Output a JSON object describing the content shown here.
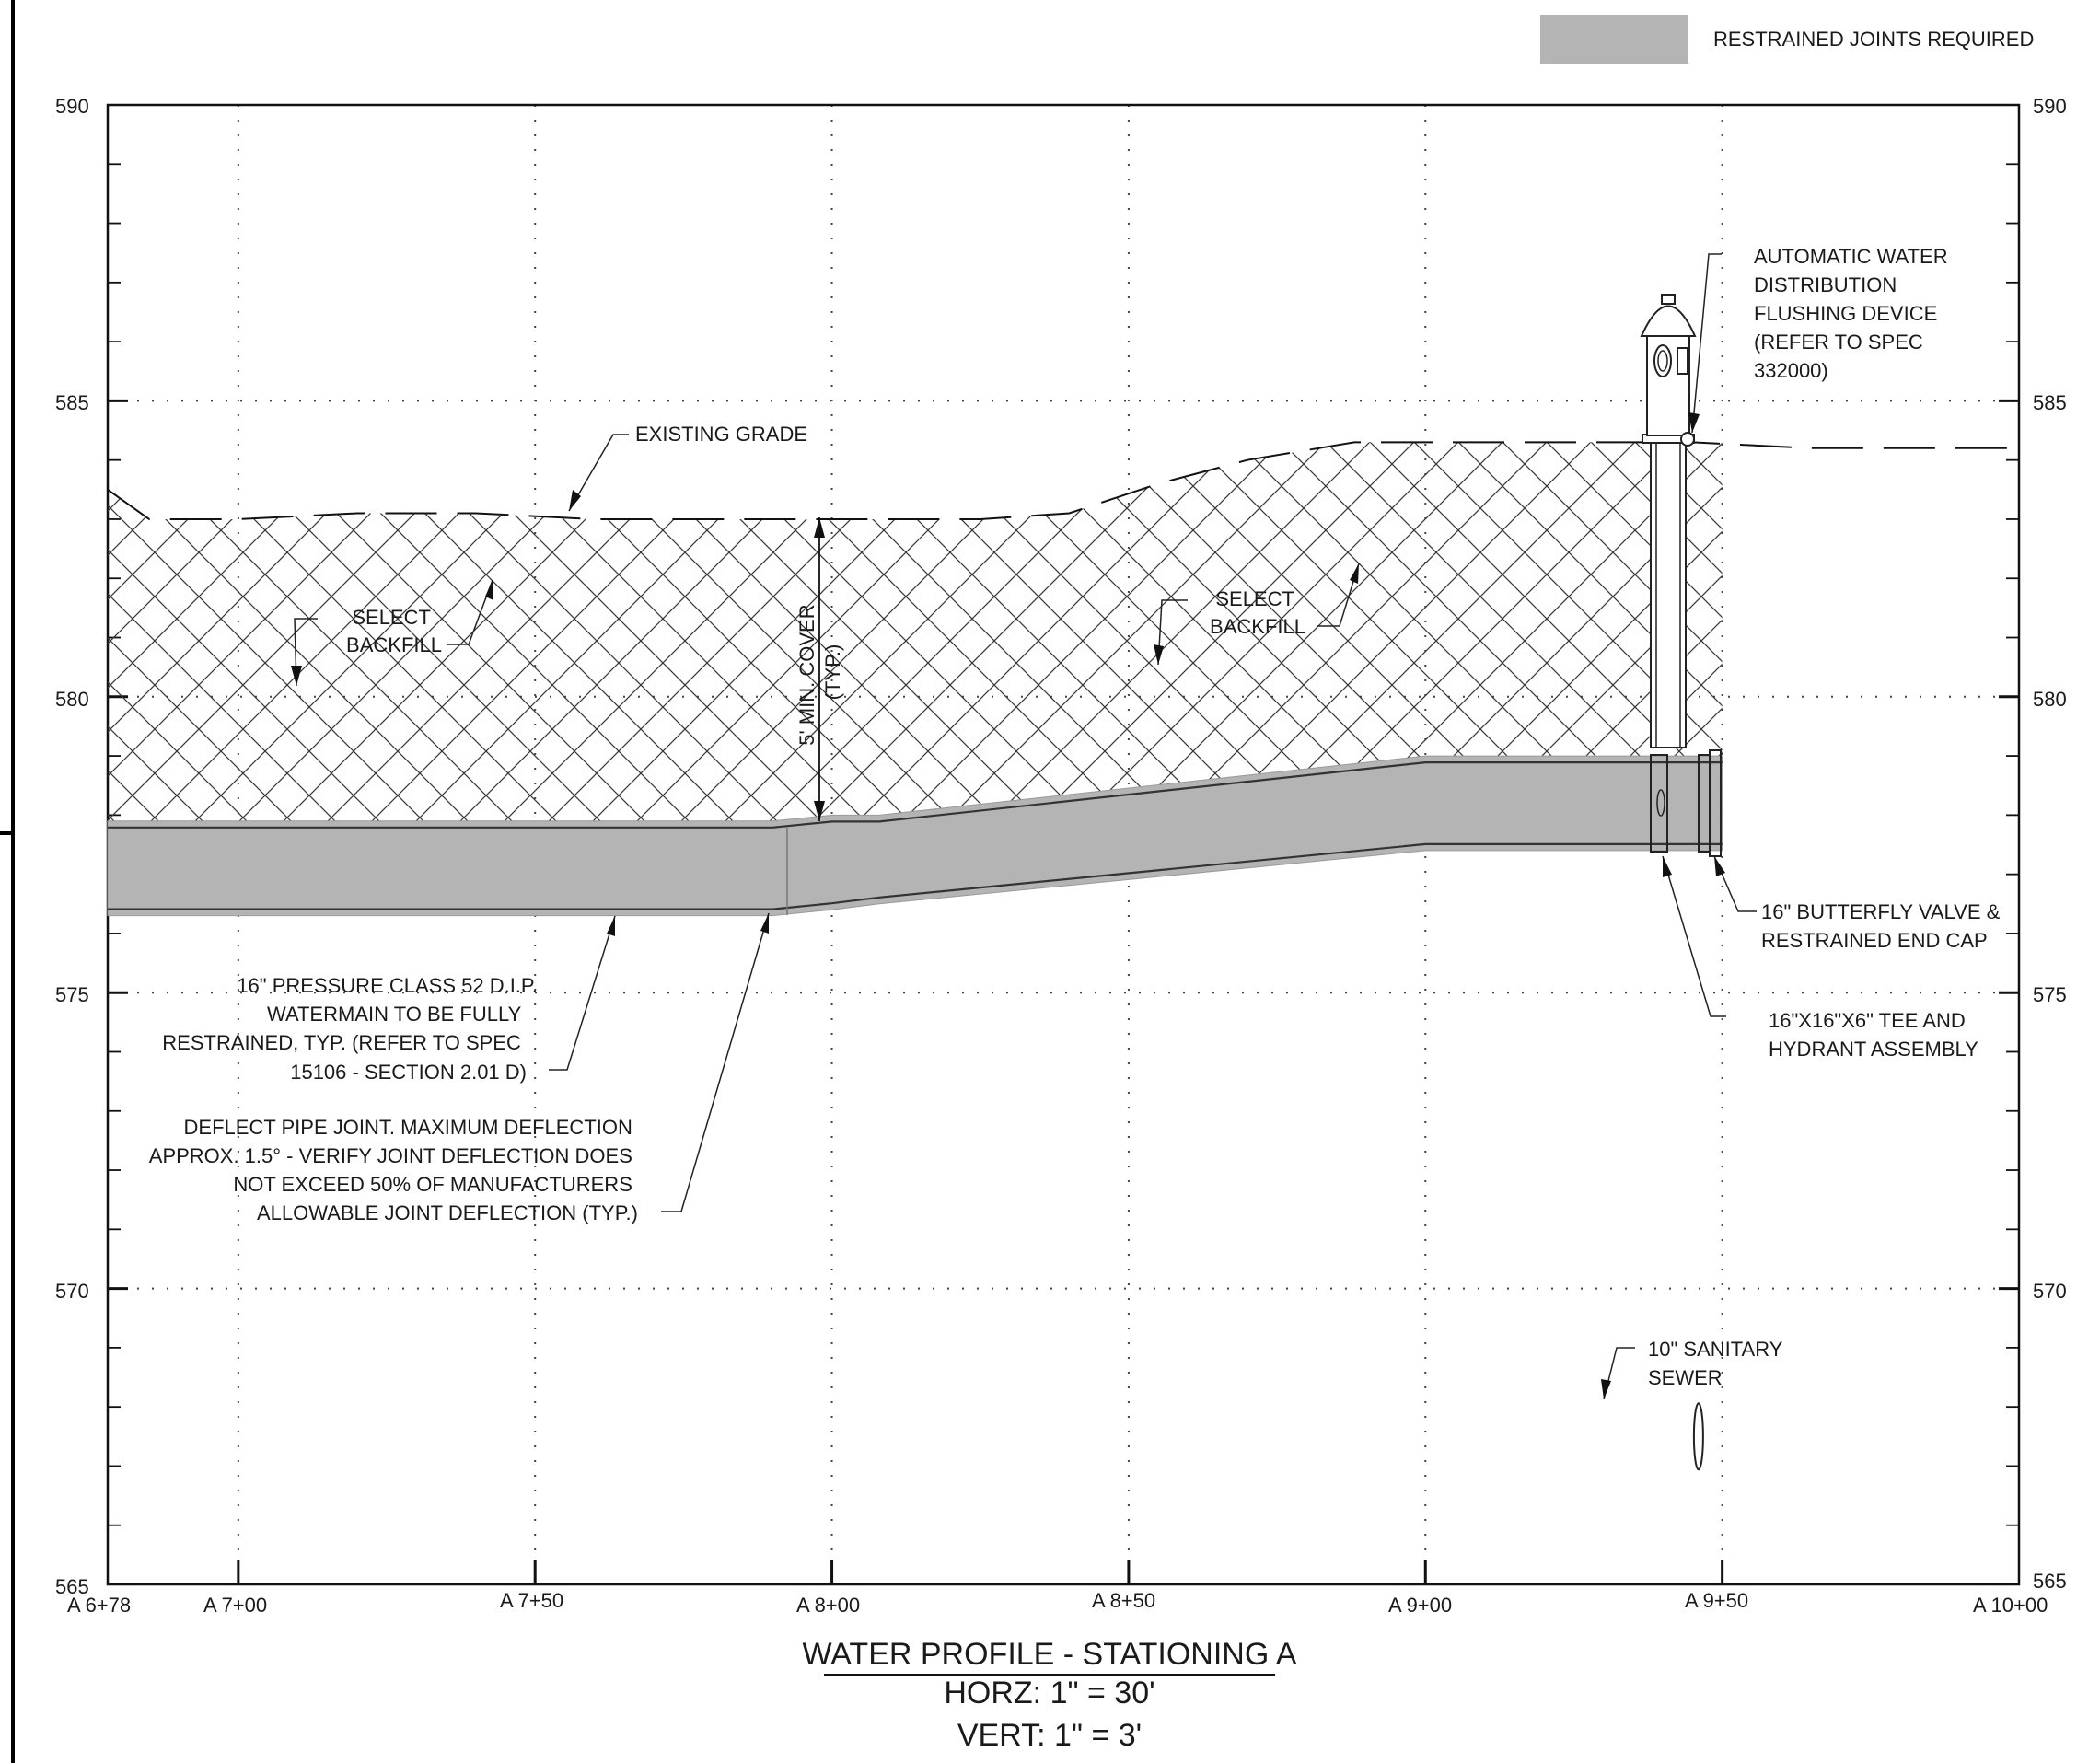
{
  "legend": {
    "label": "RESTRAINED JOINTS REQUIRED",
    "swatch_color": "#b4b4b4"
  },
  "axes": {
    "elevation_min": 565,
    "elevation_max": 590,
    "elevation_labels": [
      "590",
      "585",
      "580",
      "575",
      "570",
      "565"
    ],
    "elevation_values": [
      590,
      585,
      580,
      575,
      570,
      565
    ],
    "station_min": 678,
    "station_max": 1000,
    "station_labels": [
      "A 6+78",
      "A 7+00",
      "A 7+50",
      "A 8+00",
      "A 8+50",
      "A 9+00",
      "A 9+50",
      "A 10+00"
    ],
    "station_values": [
      678,
      700,
      750,
      800,
      850,
      900,
      950,
      1000
    ],
    "grid": "dotted"
  },
  "profile": {
    "existing_grade": [
      [
        678,
        583.5
      ],
      [
        685,
        583.0
      ],
      [
        700,
        583.0
      ],
      [
        720,
        583.1
      ],
      [
        740,
        583.1
      ],
      [
        760,
        583.0
      ],
      [
        780,
        583.0
      ],
      [
        795,
        583.0
      ],
      [
        808,
        583.0
      ],
      [
        825,
        583.0
      ],
      [
        840,
        583.1
      ],
      [
        855,
        583.6
      ],
      [
        870,
        584.0
      ],
      [
        888,
        584.3
      ],
      [
        905,
        584.3
      ],
      [
        925,
        584.3
      ],
      [
        945,
        584.3
      ],
      [
        965,
        584.2
      ],
      [
        985,
        584.2
      ],
      [
        1000,
        584.2
      ]
    ],
    "backfill_end_station": 950,
    "watermain_top": [
      [
        678,
        577.9
      ],
      [
        790,
        577.9
      ],
      [
        800,
        578.0
      ],
      [
        808,
        578.0
      ],
      [
        900,
        579.0
      ],
      [
        950,
        579.0
      ]
    ],
    "watermain_bottom": [
      [
        678,
        576.3
      ],
      [
        790,
        576.3
      ],
      [
        800,
        576.4
      ],
      [
        808,
        576.5
      ],
      [
        900,
        577.4
      ],
      [
        950,
        577.4
      ]
    ],
    "sanitary_sewer": {
      "station": 946,
      "elevation": 567.5
    },
    "hydrant": {
      "station": 939,
      "ground_elevation": 584.4
    },
    "pipe_fill_color": "#b4b4b4"
  },
  "labels": {
    "flushing_device": [
      "AUTOMATIC WATER",
      "DISTRIBUTION",
      "FLUSHING DEVICE",
      "(REFER TO SPEC",
      "332000)"
    ],
    "existing_grade": "EXISTING GRADE",
    "select_backfill_1": [
      "SELECT",
      "BACKFILL"
    ],
    "select_backfill_2": [
      "SELECT",
      "BACKFILL"
    ],
    "min_cover": [
      "5' MIN. COVER",
      "(TYP.)"
    ],
    "watermain": [
      "16\" PRESSURE CLASS 52 D.I.P.",
      "WATERMAIN TO BE FULLY",
      "RESTRAINED, TYP. (REFER TO SPEC",
      "15106 - SECTION 2.01 D)"
    ],
    "deflect": [
      "DEFLECT PIPE JOINT. MAXIMUM DEFLECTION",
      "APPROX. 1.5° - VERIFY JOINT DEFLECTION DOES",
      "NOT EXCEED 50% OF MANUFACTURERS",
      "ALLOWABLE JOINT DEFLECTION (TYP.)"
    ],
    "butterfly_valve": [
      "16\" BUTTERFLY VALVE &",
      "RESTRAINED END CAP"
    ],
    "tee_hydrant": [
      "16\"X16\"X6\" TEE AND",
      "HYDRANT ASSEMBLY"
    ],
    "sanitary": [
      "10\" SANITARY",
      "SEWER"
    ]
  },
  "title": {
    "main": "WATER PROFILE - STATIONING A",
    "horz": "HORZ: 1\" = 30'",
    "vert": "VERT: 1\" = 3'"
  }
}
